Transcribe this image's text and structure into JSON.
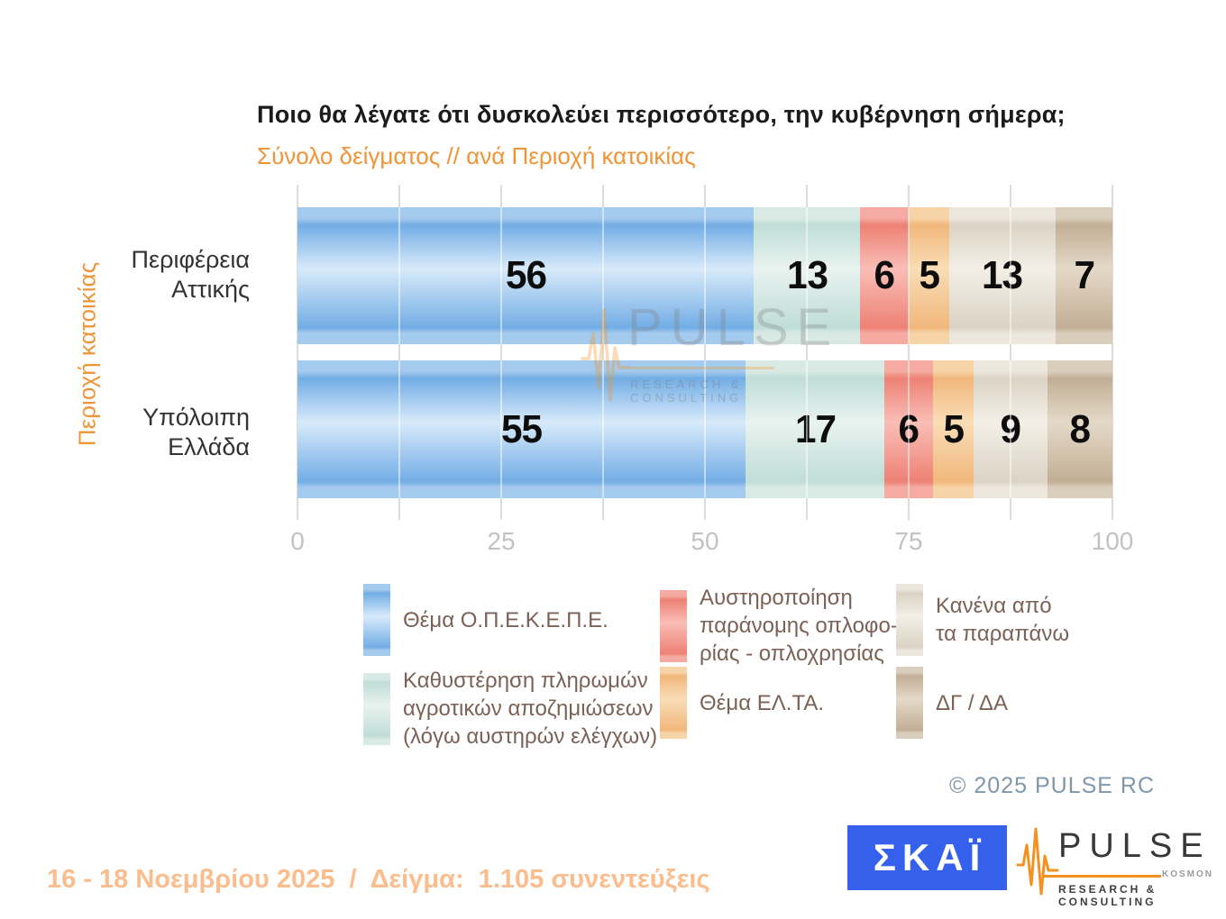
{
  "header": {
    "title": "Ποιο θα λέγατε ότι δυσκολεύει περισσότερο, την κυβέρνηση σήμερα;",
    "subtitle": "Σύνολο δείγματος // ανά Περιοχή κατοικίας"
  },
  "chart_data": {
    "type": "bar",
    "stacked": true,
    "orientation": "horizontal",
    "y_axis_title": "Περιοχή κατοικίας",
    "categories": [
      "Περιφέρεια\nΑττικής",
      "Υπόλοιπη\nΕλλάδα"
    ],
    "series": [
      {
        "name": "Θέμα Ο.Π.Ε.Κ.Ε.Π.Ε.",
        "values": [
          56,
          55
        ],
        "colors": {
          "band": "#a4caed",
          "edge": "#72ade5",
          "hi": "#d8eafa"
        }
      },
      {
        "name": "Καθυστέρηση πληρωμών αγροτικών αποζημιώσεων (λόγω αυστηρών ελέγχων)",
        "values": [
          13,
          17
        ],
        "colors": {
          "band": "#d9eae5",
          "edge": "#bfddd6",
          "hi": "#e9f3f0"
        }
      },
      {
        "name": "Αυστηροποίηση παράνομης οπλοφορίας - οπλοχρησίας",
        "values": [
          6,
          6
        ],
        "colors": {
          "band": "#f5aba1",
          "edge": "#ee8175",
          "hi": "#f9beb6"
        }
      },
      {
        "name": "Θέμα ΕΛ.ΤΑ.",
        "values": [
          5,
          5
        ],
        "colors": {
          "band": "#f7d3a8",
          "edge": "#f1b77c",
          "hi": "#f9ddb6"
        }
      },
      {
        "name": "Κανένα από τα παραπάνω",
        "values": [
          13,
          9
        ],
        "colors": {
          "band": "#ece6dc",
          "edge": "#dbd3c4",
          "hi": "#f3efe7"
        }
      },
      {
        "name": "ΔΓ / ΔΑ",
        "values": [
          7,
          8
        ],
        "colors": {
          "band": "#d9cdbb",
          "edge": "#c2ae95",
          "hi": "#e4d9c8"
        }
      }
    ],
    "x_ticks": [
      0,
      25,
      50,
      75,
      100
    ],
    "xlim": [
      0,
      100
    ],
    "gridline_step": 12.5,
    "grid_on": true,
    "legend_position": "bottom"
  },
  "legend": {
    "items": [
      {
        "label": "Θέμα Ο.Π.Ε.Κ.Ε.Π.Ε."
      },
      {
        "label": "Καθυστέρηση πληρωμών\nαγροτικών αποζημιώσεων\n(λόγω αυστηρών ελέγχων)"
      },
      {
        "label": "Αυστηροποίηση\nπαράνομης οπλοφο-\nρίας - οπλοχρησίας"
      },
      {
        "label": "Θέμα ΕΛ.ΤΑ."
      },
      {
        "label": "Κανένα από\nτα παραπάνω"
      },
      {
        "label": "ΔΓ / ΔΑ"
      }
    ]
  },
  "watermark": {
    "brand": "PULSE",
    "tagline": "RESEARCH & CONSULTING"
  },
  "footer": {
    "copyright": "©  2025  PULSE RC",
    "fieldwork": "16 - 18 Νοεμβρίου 2025  /  Δείγμα:  1.105 συνεντεύξεις",
    "skai_logo_text": "ΣΚΑΪ",
    "pulse_logo": {
      "brand": "PULSE",
      "sub_brand": "KOSMON",
      "tagline": "RESEARCH & CONSULTING"
    }
  },
  "accent_colors": {
    "orange_accent": "#ef9537",
    "footer_orange": "#fbbd8d",
    "copyright_gray_blue": "#8097ab",
    "skai_blue": "#3560ec",
    "pulse_orange": "#f59120"
  }
}
